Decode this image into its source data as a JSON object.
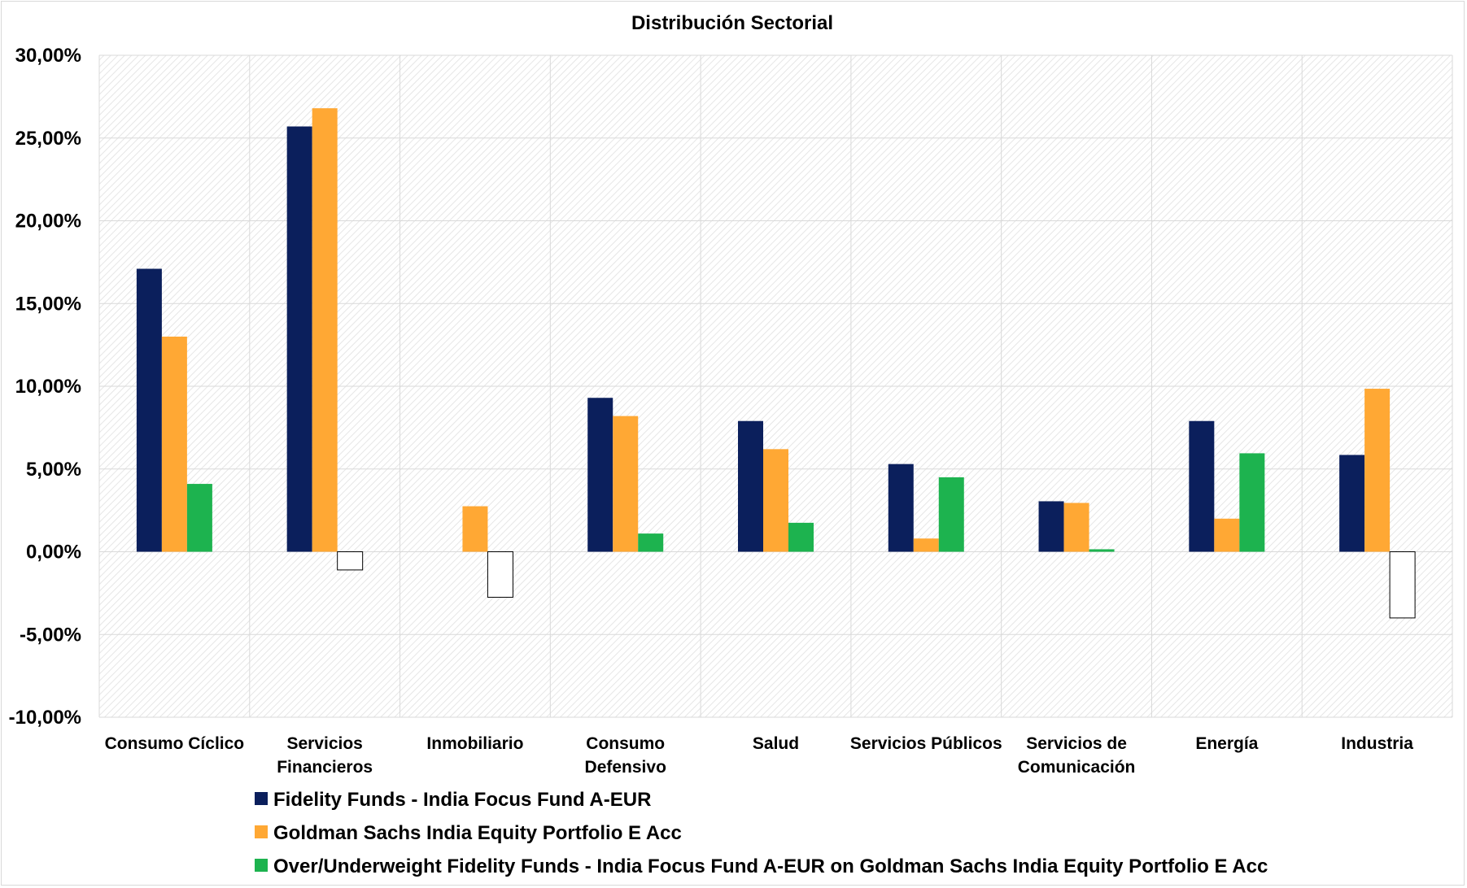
{
  "chart_data": {
    "type": "bar",
    "title": "Distribución Sectorial",
    "categories": [
      [
        "Consumo Cíclico"
      ],
      [
        "Servicios",
        "Financieros"
      ],
      [
        "Inmobiliario"
      ],
      [
        "Consumo",
        "Defensivo"
      ],
      [
        "Salud"
      ],
      [
        "Servicios Públicos"
      ],
      [
        "Servicios de",
        "Comunicación"
      ],
      [
        "Energía"
      ],
      [
        "Industria"
      ]
    ],
    "ylim": [
      -10,
      30
    ],
    "yticks": [
      "30,00%",
      "25,00%",
      "20,00%",
      "15,00%",
      "10,00%",
      "5,00%",
      "0,00%",
      "-5,00%",
      "-10,00%"
    ],
    "ytick_values": [
      30,
      25,
      20,
      15,
      10,
      5,
      0,
      -5,
      -10
    ],
    "grid": true,
    "legend_position": "bottom",
    "series": [
      {
        "name": "Fidelity Funds - India Focus Fund A-EUR",
        "color": "#0b1f5c",
        "values": [
          17.1,
          25.7,
          0.0,
          9.3,
          7.9,
          5.3,
          3.05,
          7.9,
          5.85
        ]
      },
      {
        "name": "Goldman Sachs India Equity Portfolio E Acc",
        "color": "#ffa834",
        "values": [
          13.0,
          26.8,
          2.75,
          8.2,
          6.2,
          0.8,
          2.95,
          2.0,
          9.85
        ]
      },
      {
        "name": "Over/Underweight Fidelity Funds - India Focus Fund A-EUR on Goldman Sachs India Equity Portfolio E Acc",
        "color": "#1db34f",
        "negative_color": "#ffffff",
        "values": [
          4.1,
          -1.1,
          -2.75,
          1.1,
          1.75,
          4.5,
          0.15,
          5.95,
          -4.0
        ]
      }
    ]
  }
}
